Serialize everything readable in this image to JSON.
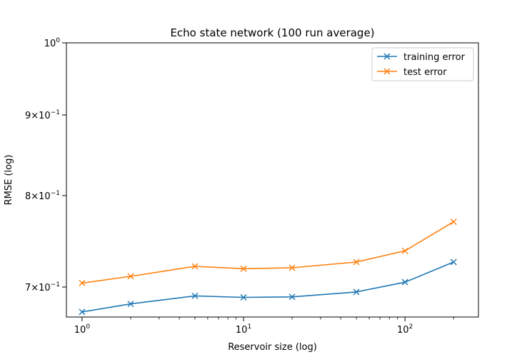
{
  "chart_data": {
    "type": "line",
    "title": "Echo state network (100 run average)",
    "xlabel": "Reservoir size (log)",
    "ylabel": "RMSE (log)",
    "x_scale": "log",
    "y_scale": "log",
    "xlim": [
      0.8,
      285
    ],
    "ylim": [
      0.67,
      1.0
    ],
    "x": [
      1,
      2,
      5,
      10,
      20,
      50,
      100,
      200
    ],
    "x_ticks": [
      {
        "value": 1,
        "base": "10",
        "exp": "0"
      },
      {
        "value": 10,
        "base": "10",
        "exp": "1"
      },
      {
        "value": 100,
        "base": "10",
        "exp": "2"
      }
    ],
    "y_ticks": [
      {
        "value": 1.0,
        "label": "10",
        "sup": "0"
      },
      {
        "value": 0.9,
        "label": "9×10",
        "sup": "−1"
      },
      {
        "value": 0.8,
        "label": "8×10",
        "sup": "−1"
      },
      {
        "value": 0.7,
        "label": "7×10",
        "sup": "−1"
      }
    ],
    "series": [
      {
        "name": "training error",
        "color": "#1f77b4",
        "marker": "x",
        "values": [
          0.675,
          0.683,
          0.691,
          0.6895,
          0.69,
          0.695,
          0.705,
          0.726
        ]
      },
      {
        "name": "test error",
        "color": "#ff7f0e",
        "marker": "x",
        "values": [
          0.704,
          0.711,
          0.7215,
          0.719,
          0.72,
          0.726,
          0.738,
          0.77
        ]
      }
    ],
    "legend_position": "top-right",
    "grid": false
  }
}
